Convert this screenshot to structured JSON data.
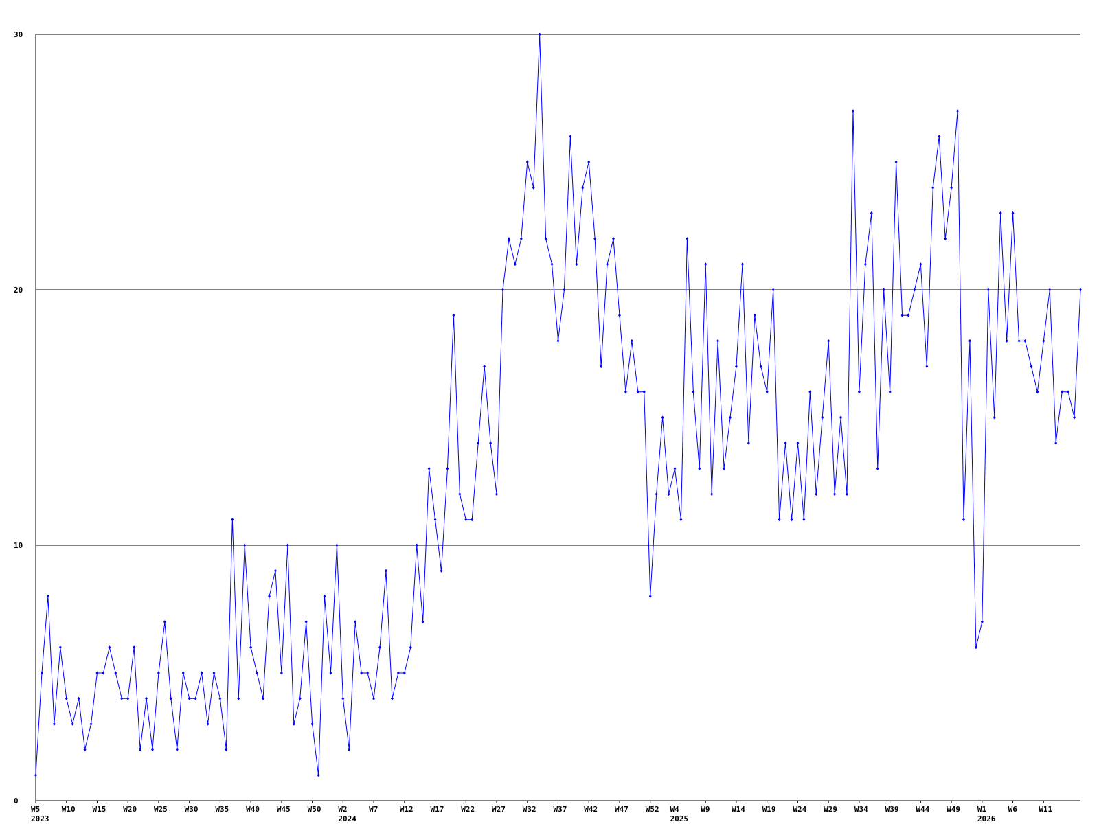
{
  "chart_data": {
    "type": "line",
    "color": "#0000ff",
    "grid": true,
    "ylim": [
      0,
      30
    ],
    "yticks": [
      0,
      10,
      20,
      30
    ],
    "categories": [
      "W5",
      null,
      null,
      null,
      null,
      "W10",
      null,
      null,
      null,
      null,
      "W15",
      null,
      null,
      null,
      null,
      "W20",
      null,
      null,
      null,
      null,
      "W25",
      null,
      null,
      null,
      null,
      "W30",
      null,
      null,
      null,
      null,
      "W35",
      null,
      null,
      null,
      null,
      "W40",
      null,
      null,
      null,
      null,
      "W45",
      null,
      null,
      null,
      null,
      "W50",
      null,
      null,
      null,
      null,
      "W2",
      null,
      null,
      null,
      null,
      "W7",
      null,
      null,
      null,
      null,
      "W12",
      null,
      null,
      null,
      null,
      "W17",
      null,
      null,
      null,
      null,
      "W22",
      null,
      null,
      null,
      null,
      "W27",
      null,
      null,
      null,
      null,
      "W32",
      null,
      null,
      null,
      null,
      "W37",
      null,
      null,
      null,
      null,
      "W42",
      null,
      null,
      null,
      null,
      "W47",
      null,
      null,
      null,
      null,
      "W52",
      null,
      null,
      null,
      "W4",
      null,
      null,
      null,
      null,
      "W9",
      null,
      null,
      null,
      null,
      "W14",
      null,
      null,
      null,
      null,
      "W19",
      null,
      null,
      null,
      null,
      "W24",
      null,
      null,
      null,
      null,
      "W29",
      null,
      null,
      null,
      null,
      "W34",
      null,
      null,
      null,
      null,
      "W39",
      null,
      null,
      null,
      null,
      "W44",
      null,
      null,
      null,
      null,
      "W49",
      null,
      null,
      null,
      null,
      "W1",
      null,
      null,
      null,
      null,
      "W6",
      null,
      null,
      null,
      null,
      "W11",
      null,
      null,
      null,
      null,
      null,
      null
    ],
    "category_years": [
      "2023",
      null,
      null,
      null,
      null,
      null,
      null,
      null,
      null,
      null,
      null,
      null,
      null,
      null,
      null,
      null,
      null,
      null,
      null,
      null,
      null,
      null,
      null,
      null,
      null,
      null,
      null,
      null,
      null,
      null,
      null,
      null,
      null,
      null,
      null,
      null,
      null,
      null,
      null,
      null,
      null,
      null,
      null,
      null,
      null,
      null,
      null,
      null,
      null,
      null,
      "2024",
      null,
      null,
      null,
      null,
      null,
      null,
      null,
      null,
      null,
      null,
      null,
      null,
      null,
      null,
      null,
      null,
      null,
      null,
      null,
      null,
      null,
      null,
      null,
      null,
      null,
      null,
      null,
      null,
      null,
      null,
      null,
      null,
      null,
      null,
      null,
      null,
      null,
      null,
      null,
      null,
      null,
      null,
      null,
      null,
      null,
      null,
      null,
      null,
      null,
      null,
      null,
      null,
      null,
      "2025",
      null,
      null,
      null,
      null,
      null,
      null,
      null,
      null,
      null,
      null,
      null,
      null,
      null,
      null,
      null,
      null,
      null,
      null,
      null,
      null,
      null,
      null,
      null,
      null,
      null,
      null,
      null,
      null,
      null,
      null,
      null,
      null,
      null,
      null,
      null,
      null,
      null,
      null,
      null,
      null,
      null,
      null,
      null,
      null,
      null,
      null,
      null,
      null,
      null,
      "2026",
      null,
      null,
      null,
      null,
      null,
      null,
      null,
      null,
      null,
      null,
      null,
      null,
      null,
      null,
      null,
      null
    ],
    "values": [
      1,
      5,
      8,
      3,
      6,
      4,
      3,
      4,
      2,
      3,
      5,
      5,
      6,
      5,
      4,
      4,
      6,
      2,
      4,
      2,
      5,
      7,
      4,
      2,
      5,
      4,
      4,
      5,
      3,
      5,
      4,
      2,
      11,
      4,
      10,
      6,
      5,
      4,
      8,
      9,
      5,
      10,
      3,
      4,
      7,
      3,
      1,
      8,
      5,
      10,
      4,
      2,
      7,
      5,
      5,
      4,
      6,
      9,
      4,
      5,
      5,
      6,
      10,
      7,
      13,
      11,
      9,
      13,
      19,
      12,
      11,
      11,
      14,
      17,
      14,
      12,
      20,
      22,
      21,
      22,
      25,
      24,
      30,
      22,
      21,
      18,
      20,
      26,
      21,
      24,
      25,
      22,
      17,
      21,
      22,
      19,
      16,
      18,
      16,
      16,
      8,
      12,
      15,
      12,
      13,
      11,
      22,
      16,
      13,
      21,
      12,
      18,
      13,
      15,
      17,
      21,
      14,
      19,
      17,
      16,
      20,
      11,
      14,
      11,
      14,
      11,
      16,
      12,
      15,
      18,
      12,
      15,
      12,
      27,
      16,
      21,
      23,
      13,
      20,
      16,
      25,
      19,
      19,
      20,
      21,
      17,
      24,
      26,
      22,
      24,
      27,
      11,
      18,
      6,
      7,
      20,
      15,
      23,
      18,
      23,
      18,
      18,
      17,
      16,
      18,
      20,
      14,
      16,
      16,
      15,
      20
    ]
  }
}
